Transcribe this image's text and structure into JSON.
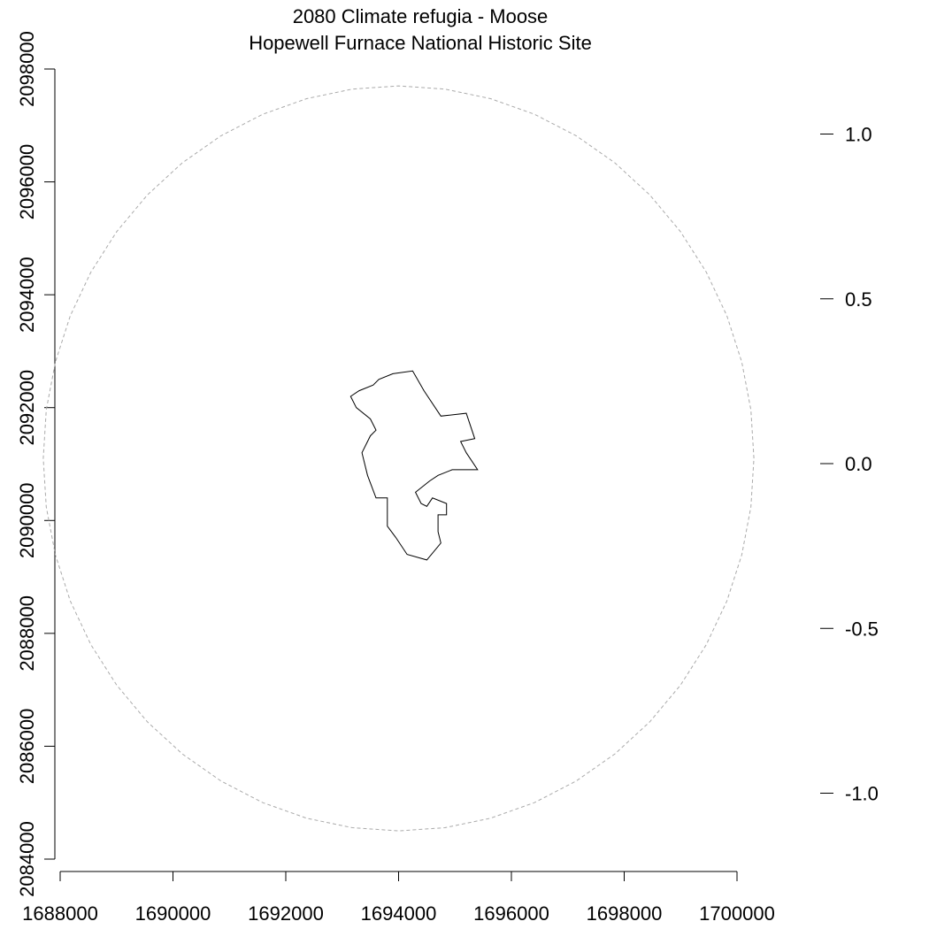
{
  "map": {
    "title": "2080 Climate refugia - Moose",
    "subtitle": "Hopewell Furnace National Historic Site"
  },
  "chart_data": {
    "type": "map",
    "x_axis": {
      "range": [
        1688000,
        1700000
      ],
      "ticks": [
        1688000,
        1690000,
        1692000,
        1694000,
        1696000,
        1698000,
        1700000
      ],
      "tick_labels": [
        "1688000",
        "1690000",
        "1692000",
        "1694000",
        "1696000",
        "1698000",
        "1700000"
      ]
    },
    "y_axis": {
      "range": [
        2084000,
        2098000
      ],
      "ticks": [
        2084000,
        2086000,
        2088000,
        2090000,
        2092000,
        2094000,
        2096000,
        2098000
      ],
      "tick_labels": [
        "2084000",
        "2086000",
        "2088000",
        "2090000",
        "2092000",
        "2094000",
        "2096000",
        "2098000"
      ]
    },
    "legend_scale": {
      "ticks": [
        1.0,
        0.5,
        0.0,
        -0.5,
        -1.0
      ],
      "tick_labels": [
        "1.0",
        "0.5",
        "0.0",
        "-0.5",
        "-1.0"
      ],
      "range": [
        -1.25,
        1.25
      ]
    },
    "buffer_boundary": {
      "style": "dashed",
      "color": "#aaaaaa",
      "center": [
        1694000,
        2091100
      ],
      "radius_x": 6300,
      "radius_y": 6600,
      "vertices": 48
    },
    "park_boundary": {
      "color": "#000000",
      "points": [
        [
          1693150,
          2092200
        ],
        [
          1693300,
          2092300
        ],
        [
          1693550,
          2092400
        ],
        [
          1693650,
          2092500
        ],
        [
          1693900,
          2092600
        ],
        [
          1694250,
          2092650
        ],
        [
          1694450,
          2092300
        ],
        [
          1694750,
          2091850
        ],
        [
          1695200,
          2091900
        ],
        [
          1695350,
          2091450
        ],
        [
          1695100,
          2091400
        ],
        [
          1695200,
          2091200
        ],
        [
          1695400,
          2090900
        ],
        [
          1694950,
          2090900
        ],
        [
          1694700,
          2090800
        ],
        [
          1694550,
          2090700
        ],
        [
          1694300,
          2090500
        ],
        [
          1694400,
          2090300
        ],
        [
          1694500,
          2090250
        ],
        [
          1694600,
          2090400
        ],
        [
          1694850,
          2090300
        ],
        [
          1694850,
          2090100
        ],
        [
          1694700,
          2090100
        ],
        [
          1694700,
          2089800
        ],
        [
          1694750,
          2089600
        ],
        [
          1694500,
          2089300
        ],
        [
          1694150,
          2089400
        ],
        [
          1693950,
          2089700
        ],
        [
          1693800,
          2089900
        ],
        [
          1693800,
          2090400
        ],
        [
          1693600,
          2090400
        ],
        [
          1693450,
          2090800
        ],
        [
          1693350,
          2091200
        ],
        [
          1693500,
          2091500
        ],
        [
          1693600,
          2091600
        ],
        [
          1693500,
          2091800
        ],
        [
          1693250,
          2092000
        ]
      ]
    }
  }
}
